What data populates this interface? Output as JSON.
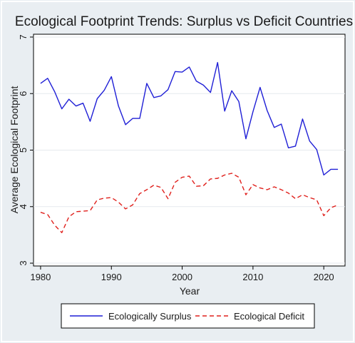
{
  "chart_data": {
    "type": "line",
    "title": "Ecological Footprint Trends: Surplus vs Deficit Countries",
    "xlabel": "Year",
    "ylabel": "Average Ecological Footprint",
    "xlim": [
      1979,
      2023
    ],
    "ylim": [
      2.95,
      7.05
    ],
    "x_ticks": [
      1980,
      1990,
      2000,
      2010,
      2020
    ],
    "y_ticks": [
      3,
      4,
      5,
      6,
      7
    ],
    "grid": "horizontal",
    "legend_position": "bottom",
    "x": [
      1980,
      1981,
      1982,
      1983,
      1984,
      1985,
      1986,
      1987,
      1988,
      1989,
      1990,
      1991,
      1992,
      1993,
      1994,
      1995,
      1996,
      1997,
      1998,
      1999,
      2000,
      2001,
      2002,
      2003,
      2004,
      2005,
      2006,
      2007,
      2008,
      2009,
      2010,
      2011,
      2012,
      2013,
      2014,
      2015,
      2016,
      2017,
      2018,
      2019,
      2020,
      2021,
      2022
    ],
    "series": [
      {
        "name": "Ecologically Surplus",
        "color": "#1f1fd6",
        "style": "solid",
        "values": [
          6.18,
          6.27,
          6.03,
          5.73,
          5.9,
          5.78,
          5.83,
          5.51,
          5.91,
          6.06,
          6.3,
          5.78,
          5.45,
          5.56,
          5.56,
          6.18,
          5.93,
          5.96,
          6.07,
          6.39,
          6.38,
          6.47,
          6.22,
          6.15,
          6.02,
          6.55,
          5.69,
          6.05,
          5.86,
          5.2,
          5.68,
          6.11,
          5.7,
          5.4,
          5.46,
          5.04,
          5.07,
          5.55,
          5.16,
          5.01,
          4.56,
          4.66,
          4.66
        ]
      },
      {
        "name": "Ecological Deficit",
        "color": "#e0201c",
        "style": "dashed",
        "values": [
          3.9,
          3.86,
          3.67,
          3.54,
          3.82,
          3.91,
          3.92,
          3.93,
          4.12,
          4.15,
          4.16,
          4.08,
          3.96,
          4.03,
          4.23,
          4.3,
          4.38,
          4.34,
          4.14,
          4.43,
          4.52,
          4.54,
          4.36,
          4.37,
          4.49,
          4.5,
          4.56,
          4.59,
          4.52,
          4.21,
          4.39,
          4.33,
          4.3,
          4.35,
          4.3,
          4.24,
          4.14,
          4.21,
          4.16,
          4.12,
          3.84,
          3.98,
          4.03
        ]
      }
    ]
  }
}
